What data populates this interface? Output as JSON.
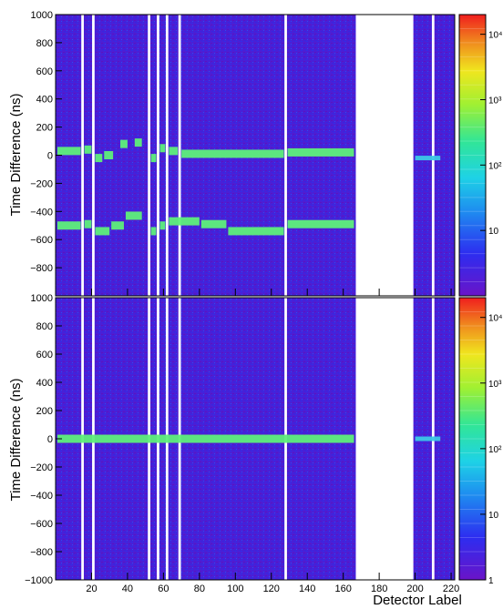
{
  "chart_data": [
    {
      "type": "heatmap",
      "title": "",
      "xlabel": "",
      "ylabel": "Time Difference (ns)",
      "xlim": [
        0,
        222
      ],
      "ylim": [
        -1000,
        1000
      ],
      "yticks": [
        -800,
        -600,
        -400,
        -200,
        0,
        200,
        400,
        600,
        800,
        1000
      ],
      "colorbar": {
        "scale": "log",
        "range": [
          1,
          20000
        ],
        "tick_labels": [
          "10",
          "10²",
          "10³",
          "10⁴"
        ],
        "tick_values": [
          10,
          100,
          1000,
          10000
        ]
      },
      "empty_detectors": [
        15,
        21,
        52,
        57,
        62,
        69,
        128,
        210
      ],
      "empty_range": [
        167,
        199
      ],
      "segments": [
        {
          "x": [
            1,
            14
          ],
          "y": 30,
          "intensity": "high"
        },
        {
          "x": [
            16,
            20
          ],
          "y": 40,
          "intensity": "high"
        },
        {
          "x": [
            22,
            26
          ],
          "y": -20,
          "intensity": "high"
        },
        {
          "x": [
            27,
            32
          ],
          "y": 0,
          "intensity": "high"
        },
        {
          "x": [
            36,
            40
          ],
          "y": 80,
          "intensity": "high"
        },
        {
          "x": [
            44,
            48
          ],
          "y": 90,
          "intensity": "high"
        },
        {
          "x": [
            53,
            56
          ],
          "y": -20,
          "intensity": "high"
        },
        {
          "x": [
            58,
            61
          ],
          "y": 50,
          "intensity": "high"
        },
        {
          "x": [
            63,
            68
          ],
          "y": 30,
          "intensity": "high"
        },
        {
          "x": [
            70,
            127
          ],
          "y": 10,
          "intensity": "high"
        },
        {
          "x": [
            129,
            166
          ],
          "y": 20,
          "intensity": "high"
        },
        {
          "x": [
            200,
            214
          ],
          "y": -20,
          "intensity": "low"
        },
        {
          "x": [
            1,
            14
          ],
          "y": -500,
          "intensity": "high"
        },
        {
          "x": [
            16,
            20
          ],
          "y": -490,
          "intensity": "high"
        },
        {
          "x": [
            22,
            30
          ],
          "y": -540,
          "intensity": "high"
        },
        {
          "x": [
            31,
            38
          ],
          "y": -500,
          "intensity": "high"
        },
        {
          "x": [
            39,
            48
          ],
          "y": -430,
          "intensity": "high"
        },
        {
          "x": [
            53,
            56
          ],
          "y": -540,
          "intensity": "high"
        },
        {
          "x": [
            58,
            61
          ],
          "y": -500,
          "intensity": "high"
        },
        {
          "x": [
            63,
            80
          ],
          "y": -470,
          "intensity": "high"
        },
        {
          "x": [
            81,
            95
          ],
          "y": -490,
          "intensity": "high"
        },
        {
          "x": [
            96,
            127
          ],
          "y": -540,
          "intensity": "high"
        },
        {
          "x": [
            129,
            166
          ],
          "y": -490,
          "intensity": "high"
        }
      ]
    },
    {
      "type": "heatmap",
      "title": "",
      "xlabel": "Detector Label",
      "ylabel": "Time Difference (ns)",
      "xlim": [
        0,
        222
      ],
      "ylim": [
        -1000,
        1000
      ],
      "xticks": [
        20,
        40,
        60,
        80,
        100,
        120,
        140,
        160,
        180,
        200,
        220
      ],
      "yticks": [
        -1000,
        -800,
        -600,
        -400,
        -200,
        0,
        200,
        400,
        600,
        800,
        1000
      ],
      "colorbar": {
        "scale": "log",
        "range": [
          1,
          20000
        ],
        "tick_labels": [
          "1",
          "10",
          "10²",
          "10³",
          "10⁴"
        ],
        "tick_values": [
          1,
          10,
          100,
          1000,
          10000
        ]
      },
      "empty_detectors": [
        15,
        21,
        52,
        57,
        62,
        69,
        128,
        210
      ],
      "empty_range": [
        167,
        199
      ],
      "segments": [
        {
          "x": [
            1,
            166
          ],
          "y": 0,
          "intensity": "high"
        },
        {
          "x": [
            200,
            214
          ],
          "y": 0,
          "intensity": "low"
        }
      ]
    }
  ]
}
